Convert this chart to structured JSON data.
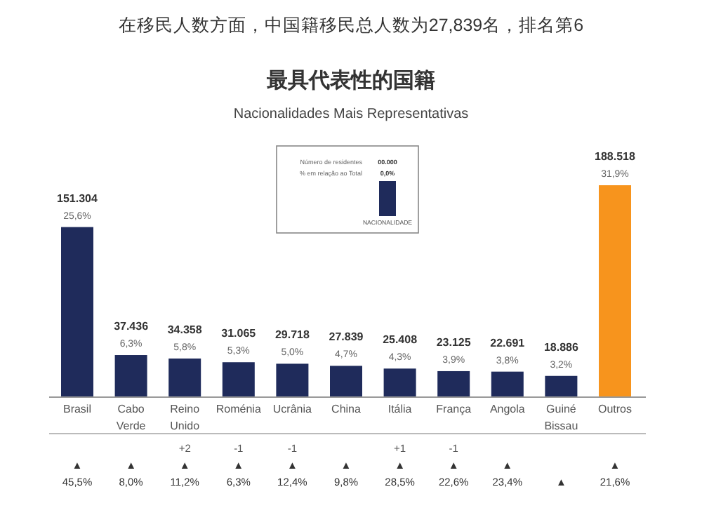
{
  "chart_data": {
    "type": "bar",
    "title": "最具代表性的国籍",
    "subtitle": "Nacionalidades Mais Representativas",
    "categories": [
      "Brasil",
      "Cabo Verde",
      "Reino Unido",
      "Roménia",
      "Ucrânia",
      "China",
      "Itália",
      "França",
      "Angola",
      "Guiné Bissau",
      "Outros"
    ],
    "values": [
      151304,
      37436,
      34358,
      31065,
      29718,
      27839,
      25408,
      23125,
      22691,
      18886,
      188518
    ],
    "colors": [
      "#1f2b5b",
      "#1f2b5b",
      "#1f2b5b",
      "#1f2b5b",
      "#1f2b5b",
      "#1f2b5b",
      "#1f2b5b",
      "#1f2b5b",
      "#1f2b5b",
      "#1f2b5b",
      "#f7941d"
    ],
    "value_labels": [
      "151.304\n25,6%",
      "37.436\n6,3%",
      "34.358\n5,8%",
      "31.065\n5,3%",
      "29.718\n5,0%",
      "27.839\n4,7%",
      "25.408\n4,3%",
      "23.125\n3,9%",
      "22.691\n3,8%",
      "18.886\n3,2%",
      "188.518\n31,9%"
    ],
    "annotations": [
      "在移民人数方面，中国籍移民总人数为27,839名，排名第6",
      "Número de residentes\t00.000",
      "% em relação ao Total\t0,0%",
      "NACIONALIDADE",
      "▲\n45,5%",
      "▲\n8,0%",
      "+2\n▲\n11,2%",
      "-1\n▲\n6,3%",
      "-1\n▲\n12,4%",
      "▲\n9,8%",
      "+1\n▲\n28,5%",
      "-1\n▲\n22,6%",
      "▲\n23,4%",
      "▲",
      "▲\n21,6%"
    ]
  }
}
